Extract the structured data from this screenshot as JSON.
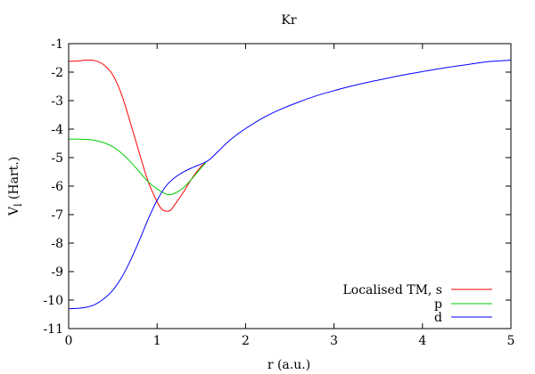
{
  "chart_data": {
    "type": "line",
    "title": "Kr",
    "xlabel": "r (a.u.)",
    "ylabel_main": "V",
    "ylabel_sub": "l",
    "ylabel_unit": " (Hart.)",
    "xlim": [
      0,
      5
    ],
    "ylim": [
      -11,
      -1
    ],
    "xticks": [
      0,
      1,
      2,
      3,
      4,
      5
    ],
    "yticks": [
      -11,
      -10,
      -9,
      -8,
      -7,
      -6,
      -5,
      -4,
      -3,
      -2,
      -1
    ],
    "grid": false,
    "legend_position": "bottom-right",
    "series": [
      {
        "name": "Localised TM, s",
        "color": "#ff0000",
        "points": [
          [
            0,
            -1.62
          ],
          [
            0.1,
            -1.61
          ],
          [
            0.2,
            -1.58
          ],
          [
            0.3,
            -1.6
          ],
          [
            0.4,
            -1.75
          ],
          [
            0.5,
            -2.1
          ],
          [
            0.6,
            -2.8
          ],
          [
            0.7,
            -3.8
          ],
          [
            0.8,
            -4.85
          ],
          [
            0.9,
            -5.85
          ],
          [
            1.0,
            -6.55
          ],
          [
            1.05,
            -6.8
          ],
          [
            1.1,
            -6.88
          ],
          [
            1.15,
            -6.85
          ],
          [
            1.2,
            -6.65
          ],
          [
            1.3,
            -6.2
          ],
          [
            1.4,
            -5.7
          ],
          [
            1.5,
            -5.3
          ],
          [
            1.55,
            -5.18
          ]
        ]
      },
      {
        "name": "p",
        "color": "#00cc00",
        "points": [
          [
            0,
            -4.35
          ],
          [
            0.1,
            -4.35
          ],
          [
            0.2,
            -4.36
          ],
          [
            0.3,
            -4.4
          ],
          [
            0.4,
            -4.48
          ],
          [
            0.5,
            -4.62
          ],
          [
            0.6,
            -4.85
          ],
          [
            0.7,
            -5.15
          ],
          [
            0.8,
            -5.5
          ],
          [
            0.9,
            -5.85
          ],
          [
            1.0,
            -6.1
          ],
          [
            1.1,
            -6.28
          ],
          [
            1.15,
            -6.3
          ],
          [
            1.2,
            -6.25
          ],
          [
            1.3,
            -6.05
          ],
          [
            1.4,
            -5.72
          ],
          [
            1.5,
            -5.35
          ],
          [
            1.55,
            -5.18
          ]
        ]
      },
      {
        "name": "d",
        "color": "#0000ff",
        "points": [
          [
            0,
            -10.3
          ],
          [
            0.1,
            -10.29
          ],
          [
            0.2,
            -10.25
          ],
          [
            0.3,
            -10.15
          ],
          [
            0.4,
            -9.95
          ],
          [
            0.5,
            -9.65
          ],
          [
            0.6,
            -9.2
          ],
          [
            0.7,
            -8.6
          ],
          [
            0.8,
            -7.9
          ],
          [
            0.9,
            -7.15
          ],
          [
            1.0,
            -6.5
          ],
          [
            1.1,
            -6.0
          ],
          [
            1.2,
            -5.7
          ],
          [
            1.3,
            -5.5
          ],
          [
            1.4,
            -5.35
          ],
          [
            1.5,
            -5.22
          ],
          [
            1.55,
            -5.15
          ],
          [
            1.6,
            -5.05
          ],
          [
            1.7,
            -4.75
          ],
          [
            1.8,
            -4.45
          ],
          [
            1.9,
            -4.2
          ],
          [
            2.0,
            -3.98
          ],
          [
            2.2,
            -3.6
          ],
          [
            2.4,
            -3.3
          ],
          [
            2.6,
            -3.05
          ],
          [
            2.8,
            -2.83
          ],
          [
            3.0,
            -2.65
          ],
          [
            3.25,
            -2.45
          ],
          [
            3.5,
            -2.28
          ],
          [
            3.75,
            -2.12
          ],
          [
            4.0,
            -1.98
          ],
          [
            4.25,
            -1.85
          ],
          [
            4.5,
            -1.74
          ],
          [
            4.75,
            -1.63
          ],
          [
            5.0,
            -1.58
          ]
        ]
      }
    ]
  }
}
